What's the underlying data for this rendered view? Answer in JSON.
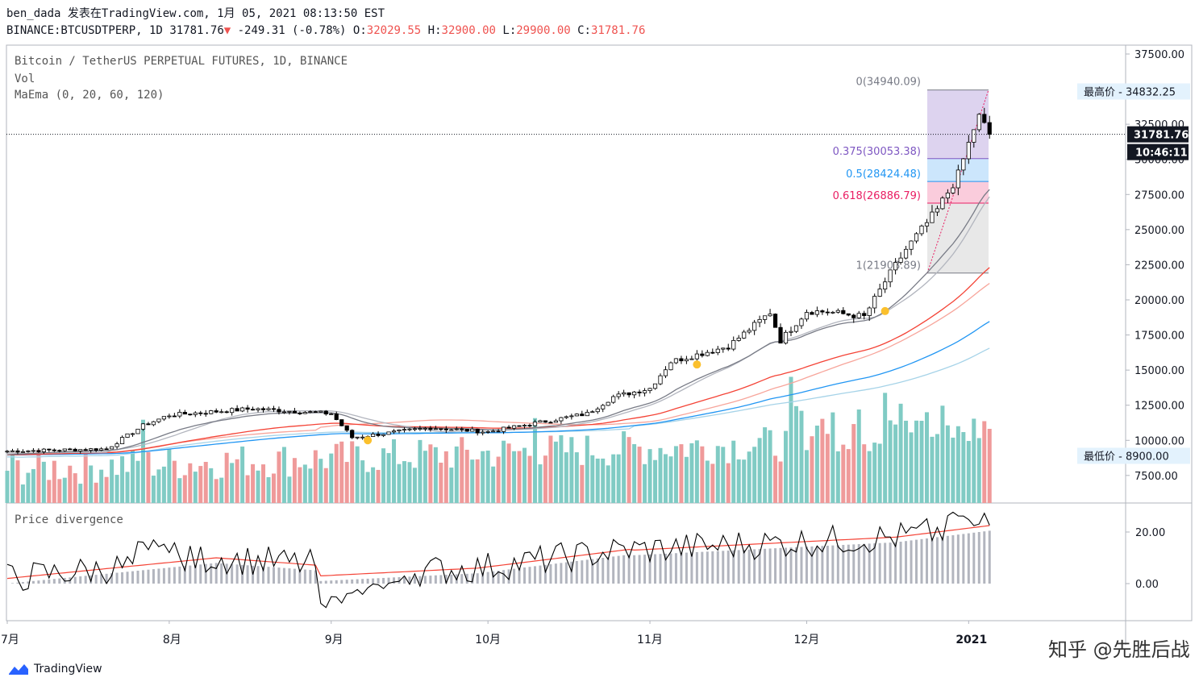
{
  "header": {
    "author": "ben_dada",
    "published": "发表在TradingView.com, 1月 05, 2021 08:13:50 EST",
    "symbol": "BINANCE:BTCUSDTPERP, 1D",
    "last": "31781.76",
    "change": "-249.31 (-0.78%)",
    "o_label": "O:",
    "o_value": "32029.55",
    "h_label": "H:",
    "h_value": "32900.00",
    "l_label": "L:",
    "l_value": "29900.00",
    "c_label": "C:",
    "c_value": "31781.76"
  },
  "legend": {
    "title": "Bitcoin / TetherUS PERPETUAL FUTURES, 1D, BINANCE",
    "vol": "Vol",
    "maema": "MaEma (0, 20, 60, 120)",
    "pane2": "Price divergence"
  },
  "price_axis": {
    "ticks": [
      "37500.00",
      "32500.00",
      "30000.00",
      "27500.00",
      "25000.00",
      "22500.00",
      "20000.00",
      "17500.00",
      "15000.00",
      "12500.00",
      "10000.00",
      "7500.00"
    ],
    "last_price": "31781.76",
    "countdown": "10:46:11",
    "high_label": "最高价 - 34832.25",
    "low_label": "最低价 - 8900.00"
  },
  "div_axis": {
    "ticks": [
      "20.00",
      "0.00"
    ]
  },
  "time_axis": {
    "ticks": [
      "7月",
      "8月",
      "9月",
      "10月",
      "11月",
      "12月",
      "2021"
    ]
  },
  "fib": [
    {
      "level": "0",
      "text": "0(34940.09)",
      "price": 34940.09,
      "color": "#787b86"
    },
    {
      "level": "0.375",
      "text": "0.375(30053.38)",
      "price": 30053.38,
      "color": "#7e57c2"
    },
    {
      "level": "0.5",
      "text": "0.5(28424.48)",
      "price": 28424.48,
      "color": "#2196f3"
    },
    {
      "level": "0.618",
      "text": "0.618(26886.79)",
      "price": 26886.79,
      "color": "#e91e63"
    },
    {
      "level": "1",
      "text": "1(21908.89)",
      "price": 21908.89,
      "color": "#787b86"
    }
  ],
  "colors": {
    "up": "#ffffff",
    "down": "#000000",
    "wick": "#000000",
    "vol_up": "#80cbc4",
    "vol_down": "#ef9a9a",
    "ma20": "#787b86",
    "ema20": "#b2b5be",
    "ma60": "#f44336",
    "ema60": "#f7a59b",
    "ma120": "#2196f3",
    "ema120": "#a6d3e8",
    "div_line": "#000000",
    "div_ma": "#f44336",
    "div_hist": "#b2b5be"
  },
  "brand": "TradingView",
  "watermark": "知乎 @先胜后战",
  "chart_data": {
    "type": "candlestick",
    "title": "Bitcoin / TetherUS PERPETUAL FUTURES, 1D, BINANCE",
    "x_range": [
      "2020-07-01",
      "2021-01-05"
    ],
    "ylim": [
      6000,
      38500
    ],
    "grid": false,
    "monthly_closes": [
      {
        "date": "2020-07-01",
        "close": 9230
      },
      {
        "date": "2020-07-20",
        "close": 9390
      },
      {
        "date": "2020-07-27",
        "close": 11050
      },
      {
        "date": "2020-08-01",
        "close": 11800
      },
      {
        "date": "2020-08-17",
        "close": 12250
      },
      {
        "date": "2020-09-01",
        "close": 11900
      },
      {
        "date": "2020-09-05",
        "close": 10200
      },
      {
        "date": "2020-09-20",
        "close": 10900
      },
      {
        "date": "2020-10-01",
        "close": 10600
      },
      {
        "date": "2020-10-20",
        "close": 11900
      },
      {
        "date": "2020-10-25",
        "close": 13100
      },
      {
        "date": "2020-11-01",
        "close": 13700
      },
      {
        "date": "2020-11-05",
        "close": 15600
      },
      {
        "date": "2020-11-16",
        "close": 16700
      },
      {
        "date": "2020-11-24",
        "close": 19100
      },
      {
        "date": "2020-11-26",
        "close": 17100
      },
      {
        "date": "2020-12-01",
        "close": 19200
      },
      {
        "date": "2020-12-05",
        "close": 19150
      },
      {
        "date": "2020-12-12",
        "close": 18800
      },
      {
        "date": "2020-12-16",
        "close": 21300
      },
      {
        "date": "2020-12-20",
        "close": 23600
      },
      {
        "date": "2020-12-26",
        "close": 26400
      },
      {
        "date": "2020-12-30",
        "close": 28900
      },
      {
        "date": "2021-01-02",
        "close": 32200
      },
      {
        "date": "2021-01-03",
        "close": 33000
      },
      {
        "date": "2021-01-05",
        "close": 31781.76
      }
    ],
    "fib_retracement": {
      "0": 34940.09,
      "0.375": 30053.38,
      "0.5": 28424.48,
      "0.618": 26886.79,
      "1": 21908.89
    },
    "highest": 34832.25,
    "lowest": 8900.0,
    "last_close": 31781.76,
    "divergence_ylim": [
      -10,
      28
    ]
  }
}
